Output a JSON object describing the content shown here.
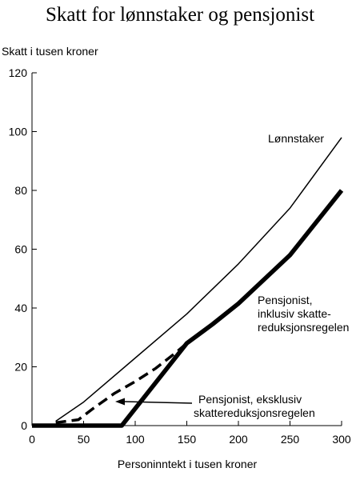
{
  "chart_data": {
    "type": "line",
    "title": "Skatt for lønnstaker og pensjonist",
    "ylabel": "Skatt i tusen kroner",
    "xlabel": "Personinntekt i tusen kroner",
    "xlim": [
      0,
      300
    ],
    "ylim": [
      0,
      120
    ],
    "xticks": [
      0,
      50,
      100,
      150,
      200,
      250,
      300
    ],
    "yticks": [
      0,
      20,
      40,
      60,
      80,
      100,
      120
    ],
    "grid": false,
    "series": [
      {
        "name": "Lønnstaker",
        "style": "thin-solid",
        "points": [
          [
            23,
            1.5
          ],
          [
            50,
            8
          ],
          [
            100,
            23
          ],
          [
            150,
            38
          ],
          [
            200,
            55
          ],
          [
            250,
            74
          ],
          [
            300,
            98
          ]
        ]
      },
      {
        "name": "Pensjonist, inklusiv skattereduksjonsregelen",
        "style": "thick-solid",
        "points": [
          [
            0,
            0
          ],
          [
            87,
            0
          ],
          [
            150,
            28
          ],
          [
            175,
            34.5
          ],
          [
            200,
            41.5
          ],
          [
            250,
            58
          ],
          [
            300,
            80
          ]
        ]
      },
      {
        "name": "Pensjonist, eksklusiv skattereduksjonsregelen",
        "style": "dashed",
        "points": [
          [
            23,
            1
          ],
          [
            45,
            2
          ],
          [
            60,
            6
          ],
          [
            80,
            11
          ],
          [
            100,
            15
          ],
          [
            120,
            19.5
          ],
          [
            140,
            25
          ],
          [
            150,
            28
          ]
        ]
      }
    ],
    "annotations": [
      {
        "lines": [
          "Lønnstaker"
        ],
        "series": 0
      },
      {
        "lines": [
          "Pensjonist,",
          "inklusiv skatte-",
          "reduksjonsregelen"
        ],
        "series": 1
      },
      {
        "lines": [
          "Pensjonist, eksklusiv",
          "skattereduksjonsregelen"
        ],
        "series": 2
      }
    ]
  }
}
